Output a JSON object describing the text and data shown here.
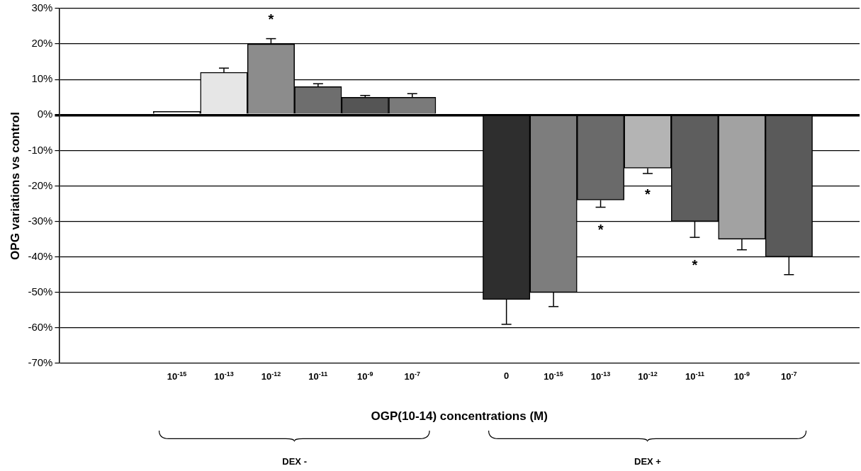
{
  "chart_data": {
    "type": "bar",
    "xlabel": "OGP(10-14) concentrations (M)",
    "ylabel": "OPG variations vs control",
    "categories": [
      null,
      null,
      "10$^{-15}$",
      "10$^{-13}$",
      "10$^{-12}$",
      "10$^{-11}$",
      "10$^{-9}$",
      "10$^{-7}$",
      null,
      "0",
      "10$^{-15}$",
      "10$^{-13}$",
      "10$^{-12}$",
      "10$^{-11}$",
      "10$^{-9}$",
      "10$^{-7}$",
      null
    ],
    "values": [
      null,
      null,
      1,
      12,
      20,
      8,
      5,
      5,
      null,
      -52,
      -50,
      -24,
      -15,
      -30,
      -35,
      -40,
      null
    ],
    "value_labels": [
      null,
      null,
      null,
      null,
      "*",
      null,
      null,
      null,
      null,
      null,
      null,
      "*",
      "*",
      "*",
      null,
      null,
      null
    ],
    "errors": [
      null,
      null,
      null,
      [
        12,
        13.2
      ],
      [
        20,
        21.5
      ],
      [
        8,
        8.8
      ],
      [
        5,
        5.5
      ],
      [
        5,
        6
      ],
      null,
      [
        -59,
        -52
      ],
      [
        -54,
        -50
      ],
      [
        -26,
        -24
      ],
      [
        -16.5,
        -15
      ],
      [
        -34.5,
        -30
      ],
      [
        -38,
        -35
      ],
      [
        -45,
        -40
      ],
      null
    ],
    "colors": [
      "#ffffff",
      "#ffffff",
      "#ffffff",
      "#e6e6e6",
      "#8c8c8c",
      "#6e6e6e",
      "#555555",
      "#7a7a7a",
      "#ffffff",
      "#2e2e2e",
      "#7d7d7d",
      "#6a6a6a",
      "#b4b4b4",
      "#5e5e5e",
      "#a2a2a2",
      "#5a5a5a",
      "#ffffff"
    ],
    "ylim": [
      -70,
      30
    ],
    "yticks": [
      {
        "value": -70,
        "label": "-70%"
      },
      {
        "value": -60,
        "label": "-60%"
      },
      {
        "value": -50,
        "label": "-50%"
      },
      {
        "value": -40,
        "label": "-40%"
      },
      {
        "value": -30,
        "label": "-30%"
      },
      {
        "value": -20,
        "label": "-20%"
      },
      {
        "value": -10,
        "label": "-10%"
      },
      {
        "value": 0,
        "label": "0%"
      },
      {
        "value": 10,
        "label": "10%"
      },
      {
        "value": 20,
        "label": "20%"
      },
      {
        "value": 30,
        "label": "30%"
      }
    ],
    "grid": "y",
    "legend": false,
    "annotations": [
      "DEX -",
      "DEX +"
    ]
  }
}
